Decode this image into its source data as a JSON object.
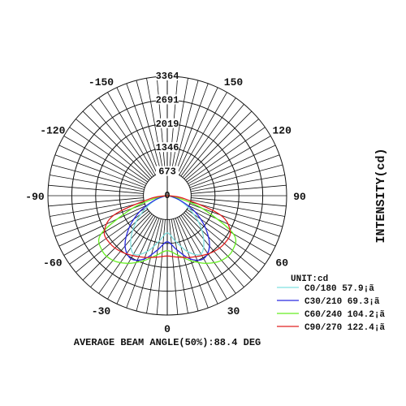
{
  "chart_data": {
    "type": "polar",
    "ylabel": "INTENSITY(cd)",
    "unit_label": "UNIT:cd",
    "footer": "AVERAGE BEAM ANGLE(50%):88.4 DEG",
    "radial_ticks": [
      "0",
      "673",
      "1346",
      "2019",
      "2691",
      "3364"
    ],
    "radial_values": [
      0,
      673,
      1346,
      2019,
      2691,
      3364
    ],
    "r_max": 3364,
    "angle_ticks": [
      {
        "angle": 0,
        "label": "0"
      },
      {
        "angle": 30,
        "label": "30"
      },
      {
        "angle": 60,
        "label": "60"
      },
      {
        "angle": 90,
        "label": "90"
      },
      {
        "angle": 120,
        "label": "120"
      },
      {
        "angle": 150,
        "label": "150"
      },
      {
        "angle": -30,
        "label": "-30"
      },
      {
        "angle": -60,
        "label": "-60"
      },
      {
        "angle": -90,
        "label": "-90"
      },
      {
        "angle": -120,
        "label": "-120"
      },
      {
        "angle": -150,
        "label": "-150"
      }
    ],
    "spoke_step_deg": 5,
    "grid": true,
    "legend_position": "bottom-right",
    "angles": [
      -90,
      -80,
      -70,
      -60,
      -50,
      -40,
      -30,
      -20,
      -10,
      0,
      10,
      20,
      30,
      40,
      50,
      60,
      70,
      80,
      90
    ],
    "series": [
      {
        "name": "C0/180 57.9¡ã",
        "color": "#7fe0e0",
        "values": [
          0,
          80,
          350,
          700,
          1150,
          1600,
          1900,
          1680,
          1300,
          1050,
          1300,
          1680,
          1900,
          1600,
          1150,
          700,
          350,
          80,
          0
        ]
      },
      {
        "name": "C30/210 69.3¡ã",
        "color": "#2a2ae0",
        "values": [
          0,
          100,
          400,
          900,
          1400,
          1850,
          2050,
          1900,
          1550,
          1300,
          1550,
          1900,
          2050,
          1850,
          1400,
          900,
          400,
          100,
          0
        ]
      },
      {
        "name": "C60/240 104.2¡ã",
        "color": "#66ee22",
        "values": [
          0,
          250,
          1050,
          2150,
          2400,
          2380,
          2200,
          1950,
          1700,
          1550,
          1700,
          1950,
          2200,
          2380,
          2400,
          2150,
          1050,
          250,
          0
        ]
      },
      {
        "name": "C90/270 122.4¡ã",
        "color": "#e02020",
        "values": [
          0,
          500,
          1600,
          2050,
          2100,
          2050,
          1950,
          1850,
          1760,
          1700,
          1760,
          1850,
          1950,
          2050,
          2100,
          2050,
          1600,
          500,
          0
        ]
      }
    ]
  }
}
